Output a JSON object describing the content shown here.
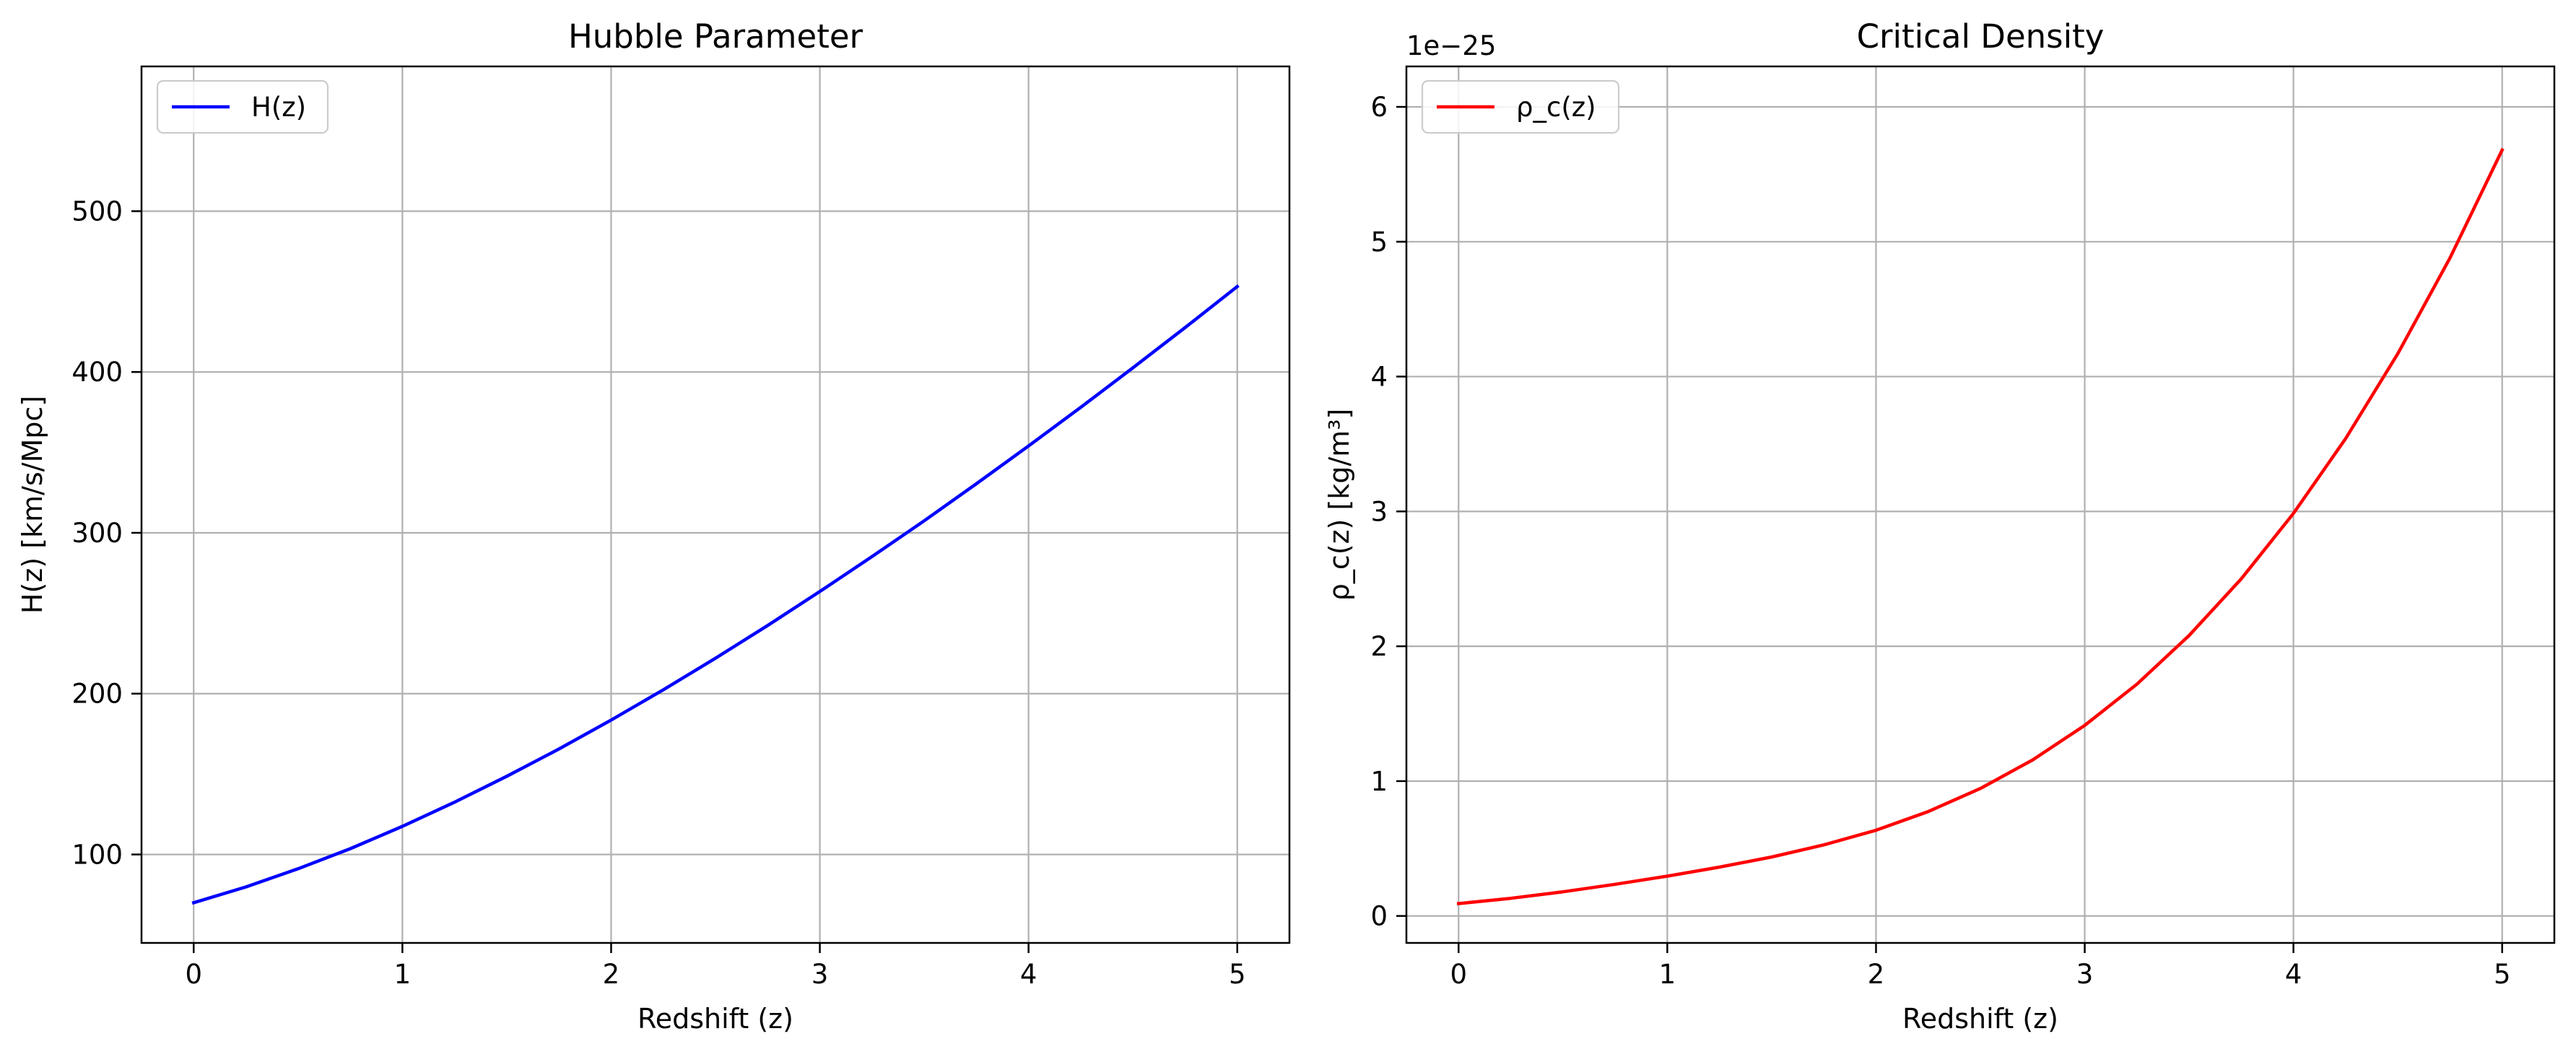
{
  "chart_data": [
    {
      "type": "line",
      "title": "Hubble Parameter",
      "xlabel": "Redshift (z)",
      "ylabel": "H(z) [km/s/Mpc]",
      "xlim": [
        -0.25,
        5.25
      ],
      "ylim": [
        45,
        590
      ],
      "xticks": [
        0,
        1,
        2,
        3,
        4,
        5
      ],
      "yticks": [
        100,
        200,
        300,
        400,
        500
      ],
      "grid": true,
      "legend_position": "upper left",
      "offset_text": "",
      "series": [
        {
          "name": "H(z)",
          "color": "#0000ff",
          "x": [
            0,
            0.25,
            0.5,
            0.75,
            1,
            1.25,
            1.5,
            1.75,
            2,
            2.25,
            2.5,
            2.75,
            3,
            3.25,
            3.5,
            3.75,
            4,
            4.25,
            4.5,
            4.75,
            5
          ],
          "y": [
            70,
            79.8,
            91.1,
            103.6,
            117.5,
            132.5,
            148.6,
            165.6,
            183.6,
            202.4,
            222,
            242.4,
            263.5,
            285.2,
            307.5,
            330.5,
            354,
            378,
            402.6,
            427.6,
            453.1
          ]
        }
      ]
    },
    {
      "type": "line",
      "title": "Critical Density",
      "xlabel": "Redshift (z)",
      "ylabel": "ρ_c(z) [kg/m³]",
      "xlim": [
        -0.25,
        5.25
      ],
      "ylim": [
        -0.2,
        6.3
      ],
      "xticks": [
        0,
        1,
        2,
        3,
        4,
        5
      ],
      "yticks": [
        0,
        1,
        2,
        3,
        4,
        5,
        6
      ],
      "grid": true,
      "legend_position": "upper left",
      "offset_text": "1e−25",
      "series": [
        {
          "name": "ρ_c(z)",
          "color": "#ff0000",
          "x": [
            0,
            0.25,
            0.5,
            0.75,
            1,
            1.25,
            1.5,
            1.75,
            2,
            2.25,
            2.5,
            2.75,
            3,
            3.25,
            3.5,
            3.75,
            4,
            4.25,
            4.5,
            4.75,
            5
          ],
          "y": [
            0.092,
            0.131,
            0.179,
            0.235,
            0.295,
            0.362,
            0.437,
            0.527,
            0.636,
            0.774,
            0.945,
            1.157,
            1.413,
            1.719,
            2.08,
            2.5,
            2.985,
            3.54,
            4.17,
            4.88,
            5.68
          ]
        }
      ]
    }
  ]
}
